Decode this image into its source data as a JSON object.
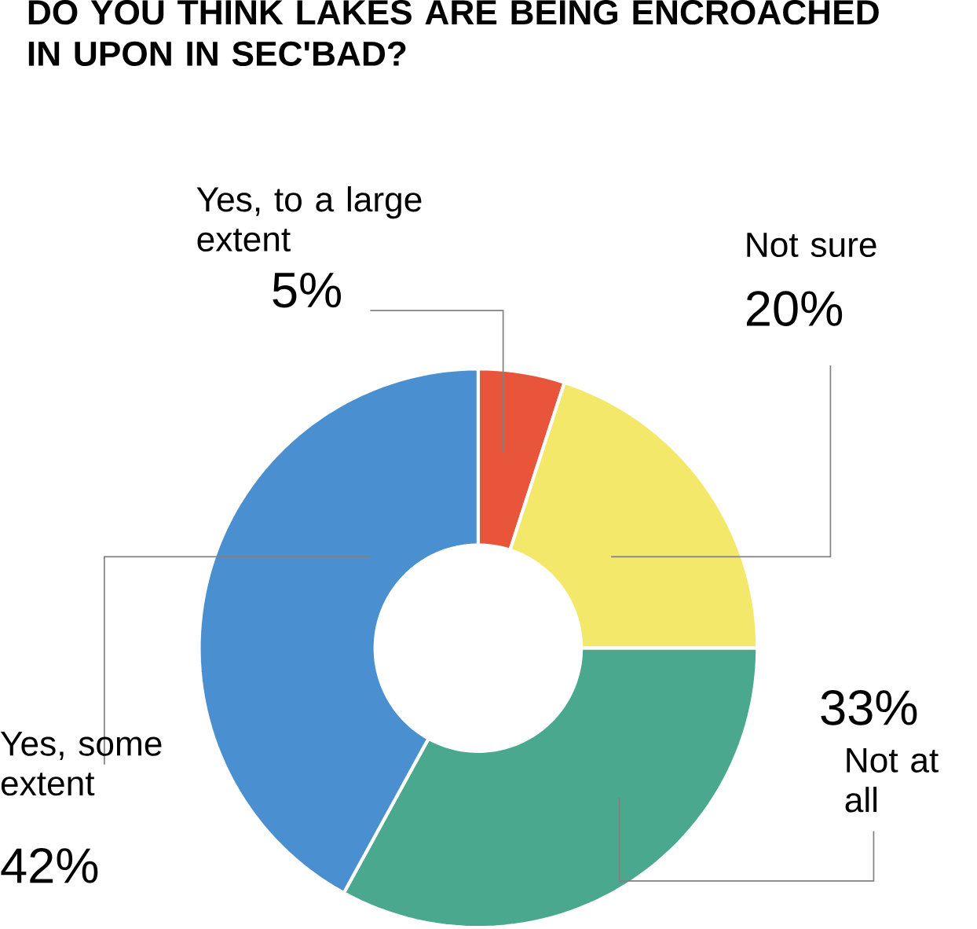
{
  "chart_data": {
    "type": "donut",
    "title": "DO YOU THINK LAKES ARE BEING ENCROACHED IN UPON IN SEC'BAD?",
    "categories": [
      "Yes, to a large extent",
      "Not sure",
      "Not at all",
      "Yes, some extent"
    ],
    "values": [
      5,
      20,
      33,
      42
    ],
    "value_labels": [
      "5%",
      "20%",
      "33%",
      "42%"
    ],
    "colors": [
      "#e8553a",
      "#f3e86a",
      "#4aa88e",
      "#4a90d0"
    ]
  }
}
